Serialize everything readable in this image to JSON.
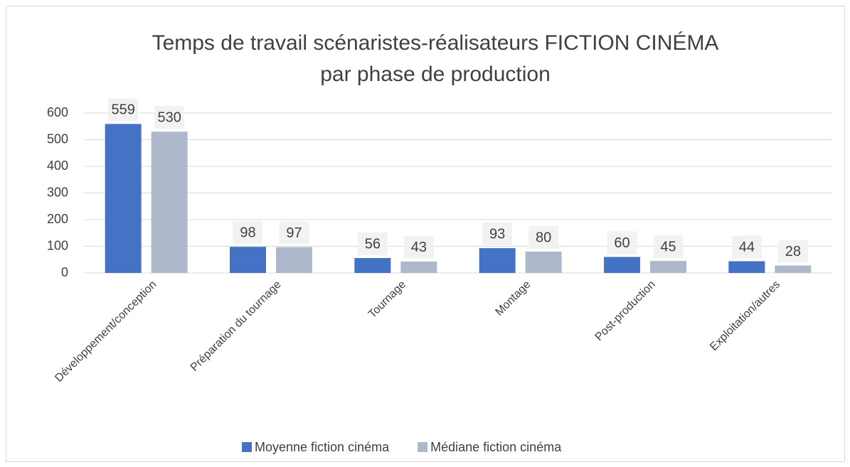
{
  "chart_data": {
    "type": "bar",
    "title": [
      "Temps de travail scénaristes-réalisateurs FICTION CINÉMA",
      "par phase de production"
    ],
    "categories": [
      "Développement/conception",
      "Préparation du tournage",
      "Tournage",
      "Montage",
      "Post-production",
      "Exploitation/autres"
    ],
    "series": [
      {
        "name": "Moyenne fiction cinéma",
        "color": "#4472c4",
        "values": [
          559,
          98,
          56,
          93,
          60,
          44
        ]
      },
      {
        "name": "Médiane fiction cinéma",
        "color": "#adb9ca",
        "values": [
          530,
          97,
          43,
          80,
          45,
          28
        ]
      }
    ],
    "ylim": [
      0,
      600
    ],
    "yticks": [
      0,
      100,
      200,
      300,
      400,
      500,
      600
    ],
    "grid": true,
    "legend": "bottom"
  }
}
